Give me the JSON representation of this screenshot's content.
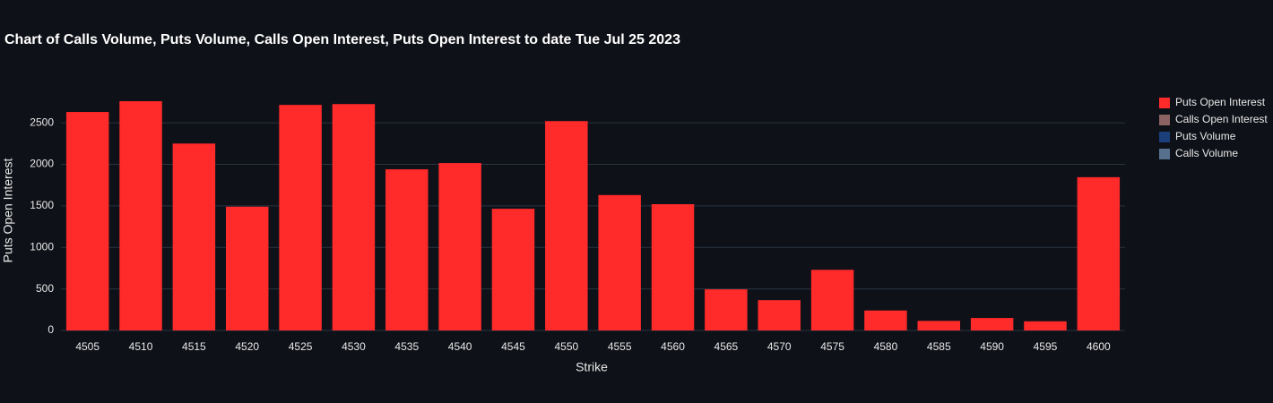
{
  "chart_data": {
    "type": "bar",
    "title": "Chart of Calls Volume, Puts Volume, Calls Open Interest, Puts Open Interest to date Tue Jul 25 2023",
    "xlabel": "Strike",
    "ylabel": "Puts Open Interest",
    "categories": [
      4505,
      4510,
      4515,
      4520,
      4525,
      4530,
      4535,
      4540,
      4545,
      4550,
      4555,
      4560,
      4565,
      4570,
      4575,
      4580,
      4585,
      4590,
      4595,
      4600
    ],
    "series": [
      {
        "name": "Puts Open Interest",
        "color": "#ff2a2a",
        "visible": true,
        "values": [
          2630,
          2760,
          2250,
          1490,
          2715,
          2725,
          1940,
          2015,
          1465,
          2520,
          1630,
          1520,
          495,
          365,
          730,
          240,
          115,
          150,
          110,
          1845
        ]
      },
      {
        "name": "Calls Open Interest",
        "color": "#8c6262",
        "visible": false
      },
      {
        "name": "Puts Volume",
        "color": "#1a3f7a",
        "visible": false
      },
      {
        "name": "Calls Volume",
        "color": "#56708e",
        "visible": false
      }
    ],
    "ylim": [
      0,
      2900
    ],
    "yticks": [
      0,
      500,
      1000,
      1500,
      2000,
      2500
    ],
    "grid": true,
    "legend": "top-right"
  }
}
